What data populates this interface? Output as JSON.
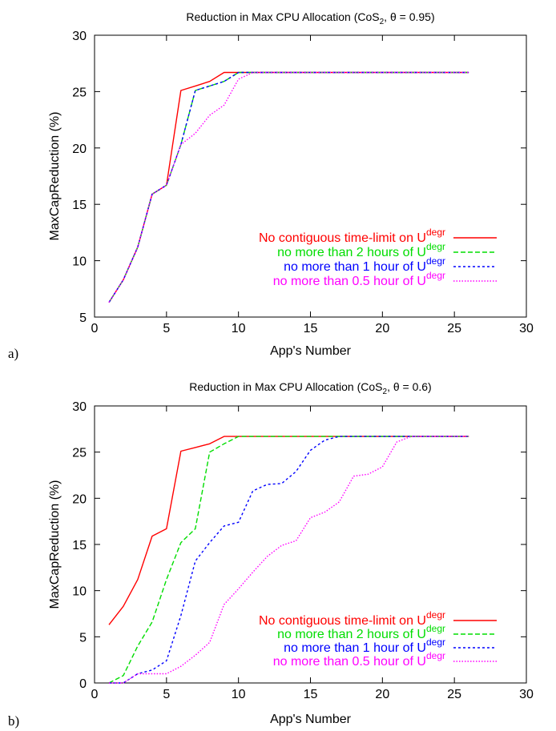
{
  "chart_data": [
    {
      "type": "line",
      "panel_label": "a)",
      "title": "Reduction in Max CPU Allocation (CoS",
      "title_sub": "2",
      "title_tail": ", θ = 0.95)",
      "xlabel": "App's Number",
      "ylabel": "MaxCapReduction (%)",
      "xlim": [
        0,
        30
      ],
      "ylim": [
        5,
        30
      ],
      "xticks": [
        "0",
        "5",
        "10",
        "15",
        "20",
        "25",
        "30"
      ],
      "yticks": [
        "5",
        "10",
        "15",
        "20",
        "25",
        "30"
      ],
      "legend_position": "center-right",
      "series": [
        {
          "name": "No contiguous time-limit  on  U",
          "sup": "degr",
          "color": "#ff0000",
          "dash": "",
          "x": [
            1,
            2,
            3,
            4,
            5,
            6,
            7,
            8,
            9,
            10,
            11,
            12,
            13,
            14,
            15,
            16,
            17,
            18,
            19,
            20,
            21,
            22,
            23,
            24,
            25,
            26
          ],
          "y": [
            6.3,
            8.3,
            11.2,
            15.9,
            16.7,
            25.1,
            25.5,
            25.9,
            26.7,
            26.7,
            26.7,
            26.7,
            26.7,
            26.7,
            26.7,
            26.7,
            26.7,
            26.7,
            26.7,
            26.7,
            26.7,
            26.7,
            26.7,
            26.7,
            26.7,
            26.7
          ]
        },
        {
          "name": "no more than 2 hours of  U",
          "sup": "degr",
          "color": "#00dd00",
          "dash": "6,3",
          "x": [
            1,
            2,
            3,
            4,
            5,
            6,
            7,
            8,
            9,
            10,
            11,
            12,
            13,
            14,
            15,
            16,
            17,
            18,
            19,
            20,
            21,
            22,
            23,
            24,
            25,
            26
          ],
          "y": [
            6.3,
            8.3,
            11.2,
            15.9,
            16.7,
            20.3,
            25.1,
            25.5,
            25.9,
            26.7,
            26.7,
            26.7,
            26.7,
            26.7,
            26.7,
            26.7,
            26.7,
            26.7,
            26.7,
            26.7,
            26.7,
            26.7,
            26.7,
            26.7,
            26.7,
            26.7
          ]
        },
        {
          "name": "no more than 1 hour of  U",
          "sup": "degr",
          "color": "#0000ff",
          "dash": "3,3",
          "x": [
            1,
            2,
            3,
            4,
            5,
            6,
            7,
            8,
            9,
            10,
            11,
            12,
            13,
            14,
            15,
            16,
            17,
            18,
            19,
            20,
            21,
            22,
            23,
            24,
            25,
            26
          ],
          "y": [
            6.3,
            8.3,
            11.2,
            15.9,
            16.7,
            20.3,
            25.1,
            25.5,
            25.9,
            26.7,
            26.7,
            26.7,
            26.7,
            26.7,
            26.7,
            26.7,
            26.7,
            26.7,
            26.7,
            26.7,
            26.7,
            26.7,
            26.7,
            26.7,
            26.7,
            26.7
          ]
        },
        {
          "name": "no more than 0.5 hour of U",
          "sup": "degr",
          "color": "#ff00ff",
          "dash": "1.5,2",
          "x": [
            1,
            2,
            3,
            4,
            5,
            6,
            7,
            8,
            9,
            10,
            11,
            12,
            13,
            14,
            15,
            16,
            17,
            18,
            19,
            20,
            21,
            22,
            23,
            24,
            25,
            26
          ],
          "y": [
            6.3,
            8.3,
            11.2,
            15.9,
            16.7,
            20.3,
            21.3,
            22.9,
            23.8,
            26.1,
            26.7,
            26.7,
            26.7,
            26.7,
            26.7,
            26.7,
            26.7,
            26.7,
            26.7,
            26.7,
            26.7,
            26.7,
            26.7,
            26.7,
            26.7,
            26.7
          ]
        }
      ]
    },
    {
      "type": "line",
      "panel_label": "b)",
      "title": "Reduction in Max CPU Allocation (CoS",
      "title_sub": "2",
      "title_tail": ", θ = 0.6)",
      "xlabel": "App's Number",
      "ylabel": "MaxCapReduction (%)",
      "xlim": [
        0,
        30
      ],
      "ylim": [
        0,
        30
      ],
      "xticks": [
        "0",
        "5",
        "10",
        "15",
        "20",
        "25",
        "30"
      ],
      "yticks": [
        "0",
        "5",
        "10",
        "15",
        "20",
        "25",
        "30"
      ],
      "legend_position": "bottom-right",
      "series": [
        {
          "name": "No contiguous time-limit  on  U",
          "sup": "degr",
          "color": "#ff0000",
          "dash": "",
          "x": [
            1,
            2,
            3,
            4,
            5,
            6,
            7,
            8,
            9,
            10,
            11,
            12,
            13,
            14,
            15,
            16,
            17,
            18,
            19,
            20,
            21,
            22,
            23,
            24,
            25,
            26
          ],
          "y": [
            6.3,
            8.3,
            11.2,
            15.9,
            16.7,
            25.1,
            25.5,
            25.9,
            26.7,
            26.7,
            26.7,
            26.7,
            26.7,
            26.7,
            26.7,
            26.7,
            26.7,
            26.7,
            26.7,
            26.7,
            26.7,
            26.7,
            26.7,
            26.7,
            26.7,
            26.7
          ]
        },
        {
          "name": "no more than 2 hours of  U",
          "sup": "degr",
          "color": "#00dd00",
          "dash": "6,3",
          "x": [
            1,
            2,
            3,
            4,
            5,
            6,
            7,
            8,
            9,
            10,
            11,
            12,
            13,
            14,
            15,
            16,
            17,
            18,
            19,
            20,
            21,
            22,
            23,
            24,
            25,
            26
          ],
          "y": [
            0,
            0.8,
            4.0,
            6.6,
            11.2,
            15.2,
            16.7,
            25.0,
            25.9,
            26.7,
            26.7,
            26.7,
            26.7,
            26.7,
            26.7,
            26.7,
            26.7,
            26.7,
            26.7,
            26.7,
            26.7,
            26.7,
            26.7,
            26.7,
            26.7,
            26.7
          ]
        },
        {
          "name": "no more than 1 hour of  U",
          "sup": "degr",
          "color": "#0000ff",
          "dash": "3,3",
          "x": [
            1,
            2,
            3,
            4,
            5,
            6,
            7,
            8,
            9,
            10,
            11,
            12,
            13,
            14,
            15,
            16,
            17,
            18,
            19,
            20,
            21,
            22,
            23,
            24,
            25,
            26
          ],
          "y": [
            0,
            0,
            1.0,
            1.4,
            2.4,
            7.3,
            13.2,
            15.2,
            17.0,
            17.4,
            20.8,
            21.5,
            21.6,
            22.9,
            25.2,
            26.3,
            26.7,
            26.7,
            26.7,
            26.7,
            26.7,
            26.7,
            26.7,
            26.7,
            26.7,
            26.7
          ]
        },
        {
          "name": "no more than 0.5 hour of U",
          "sup": "degr",
          "color": "#ff00ff",
          "dash": "1.5,2",
          "x": [
            1,
            2,
            3,
            4,
            5,
            6,
            7,
            8,
            9,
            10,
            11,
            12,
            13,
            14,
            15,
            16,
            17,
            18,
            19,
            20,
            21,
            22,
            23,
            24,
            25,
            26
          ],
          "y": [
            0,
            0,
            1.0,
            1.0,
            1.0,
            1.8,
            3.0,
            4.4,
            8.5,
            10.2,
            12.0,
            13.7,
            14.9,
            15.4,
            17.9,
            18.5,
            19.6,
            22.4,
            22.6,
            23.4,
            26.1,
            26.7,
            26.7,
            26.7,
            26.7,
            26.7
          ]
        }
      ]
    }
  ]
}
